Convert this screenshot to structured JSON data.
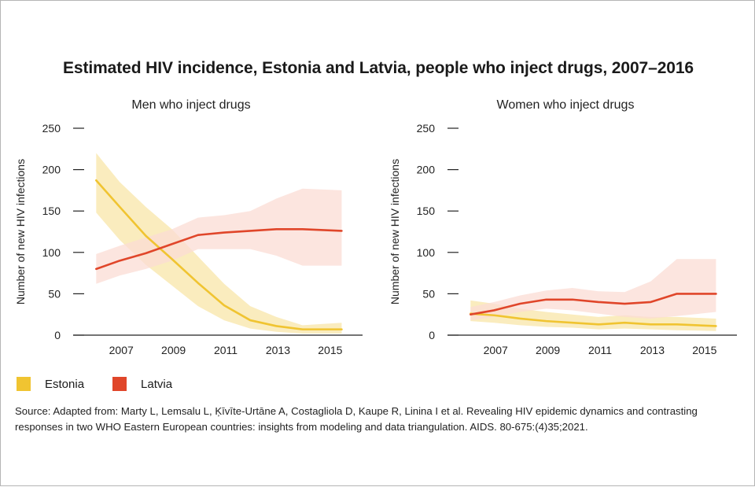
{
  "title": "Estimated HIV incidence, Estonia and Latvia, people who inject drugs, 2007–2016",
  "colors": {
    "estonia": "#f0c431",
    "latvia": "#e0462a",
    "estonia_band": "#f8e6a8",
    "latvia_band": "#fbdcd4",
    "axis": "#222222"
  },
  "legend": [
    {
      "label": "Estonia",
      "color": "#f0c431"
    },
    {
      "label": "Latvia",
      "color": "#e0462a"
    }
  ],
  "source": "Source: Adapted from: Marty L, Lemsalu L, Ķīvīte-Urtāne A, Costagliola D, Kaupe R, Linina I et al. Revealing HIV epidemic dynamics and contrasting responses in two WHO Eastern European countries: insights from modeling and data triangulation. AIDS. 80-675:(4)35;2021.",
  "chart_data": [
    {
      "type": "line",
      "title": "Men who inject drugs",
      "ylabel": "Number of new HIV infections",
      "xlabel": "",
      "ylim": [
        0,
        250
      ],
      "yticks": [
        0,
        50,
        100,
        150,
        200,
        250
      ],
      "xticks": [
        2007,
        2009,
        2011,
        2013,
        2015
      ],
      "x": [
        2006,
        2007,
        2008,
        2009,
        2010,
        2011,
        2012,
        2013,
        2014,
        2015,
        2016
      ],
      "series": [
        {
          "name": "Estonia",
          "values": [
            187,
            155,
            120,
            92,
            63,
            36,
            18,
            11,
            7,
            7
          ],
          "x": [
            2006.1,
            2007,
            2008,
            2009,
            2010,
            2011,
            2012,
            2013,
            2014,
            2015.5
          ],
          "lower": [
            148,
            115,
            85,
            60,
            35,
            18,
            8,
            4,
            2,
            2
          ],
          "upper": [
            220,
            185,
            155,
            128,
            95,
            62,
            35,
            22,
            12,
            15
          ]
        },
        {
          "name": "Latvia",
          "values": [
            80,
            90,
            99,
            110,
            121,
            124,
            126,
            128,
            128,
            126
          ],
          "x": [
            2006.1,
            2007,
            2008,
            2009,
            2010,
            2011,
            2012,
            2013,
            2014,
            2015.5
          ],
          "lower": [
            62,
            72,
            80,
            90,
            104,
            104,
            104,
            96,
            84,
            84
          ],
          "upper": [
            98,
            108,
            118,
            128,
            142,
            145,
            150,
            165,
            177,
            175
          ]
        }
      ]
    },
    {
      "type": "line",
      "title": "Women who inject drugs",
      "ylabel": "Number of new HIV infections",
      "xlabel": "",
      "ylim": [
        0,
        250
      ],
      "yticks": [
        0,
        50,
        100,
        150,
        200,
        250
      ],
      "xticks": [
        2007,
        2009,
        2011,
        2013,
        2015
      ],
      "series": [
        {
          "name": "Estonia",
          "values": [
            26,
            24,
            20,
            17,
            15,
            13,
            15,
            13,
            13,
            11
          ],
          "x": [
            2006.1,
            2007,
            2008,
            2009,
            2010,
            2011,
            2012,
            2013,
            2014,
            2015.5
          ],
          "lower": [
            17,
            15,
            12,
            10,
            9,
            7,
            8,
            7,
            6,
            5
          ],
          "upper": [
            42,
            38,
            32,
            28,
            25,
            22,
            24,
            22,
            22,
            20
          ]
        },
        {
          "name": "Latvia",
          "values": [
            25,
            30,
            38,
            43,
            43,
            40,
            38,
            40,
            50,
            50
          ],
          "x": [
            2006.1,
            2007,
            2008,
            2009,
            2010,
            2011,
            2012,
            2013,
            2014,
            2015.5
          ],
          "lower": [
            18,
            22,
            28,
            32,
            30,
            26,
            22,
            20,
            23,
            28
          ],
          "upper": [
            34,
            40,
            48,
            54,
            57,
            53,
            52,
            65,
            92,
            92
          ]
        }
      ]
    }
  ]
}
